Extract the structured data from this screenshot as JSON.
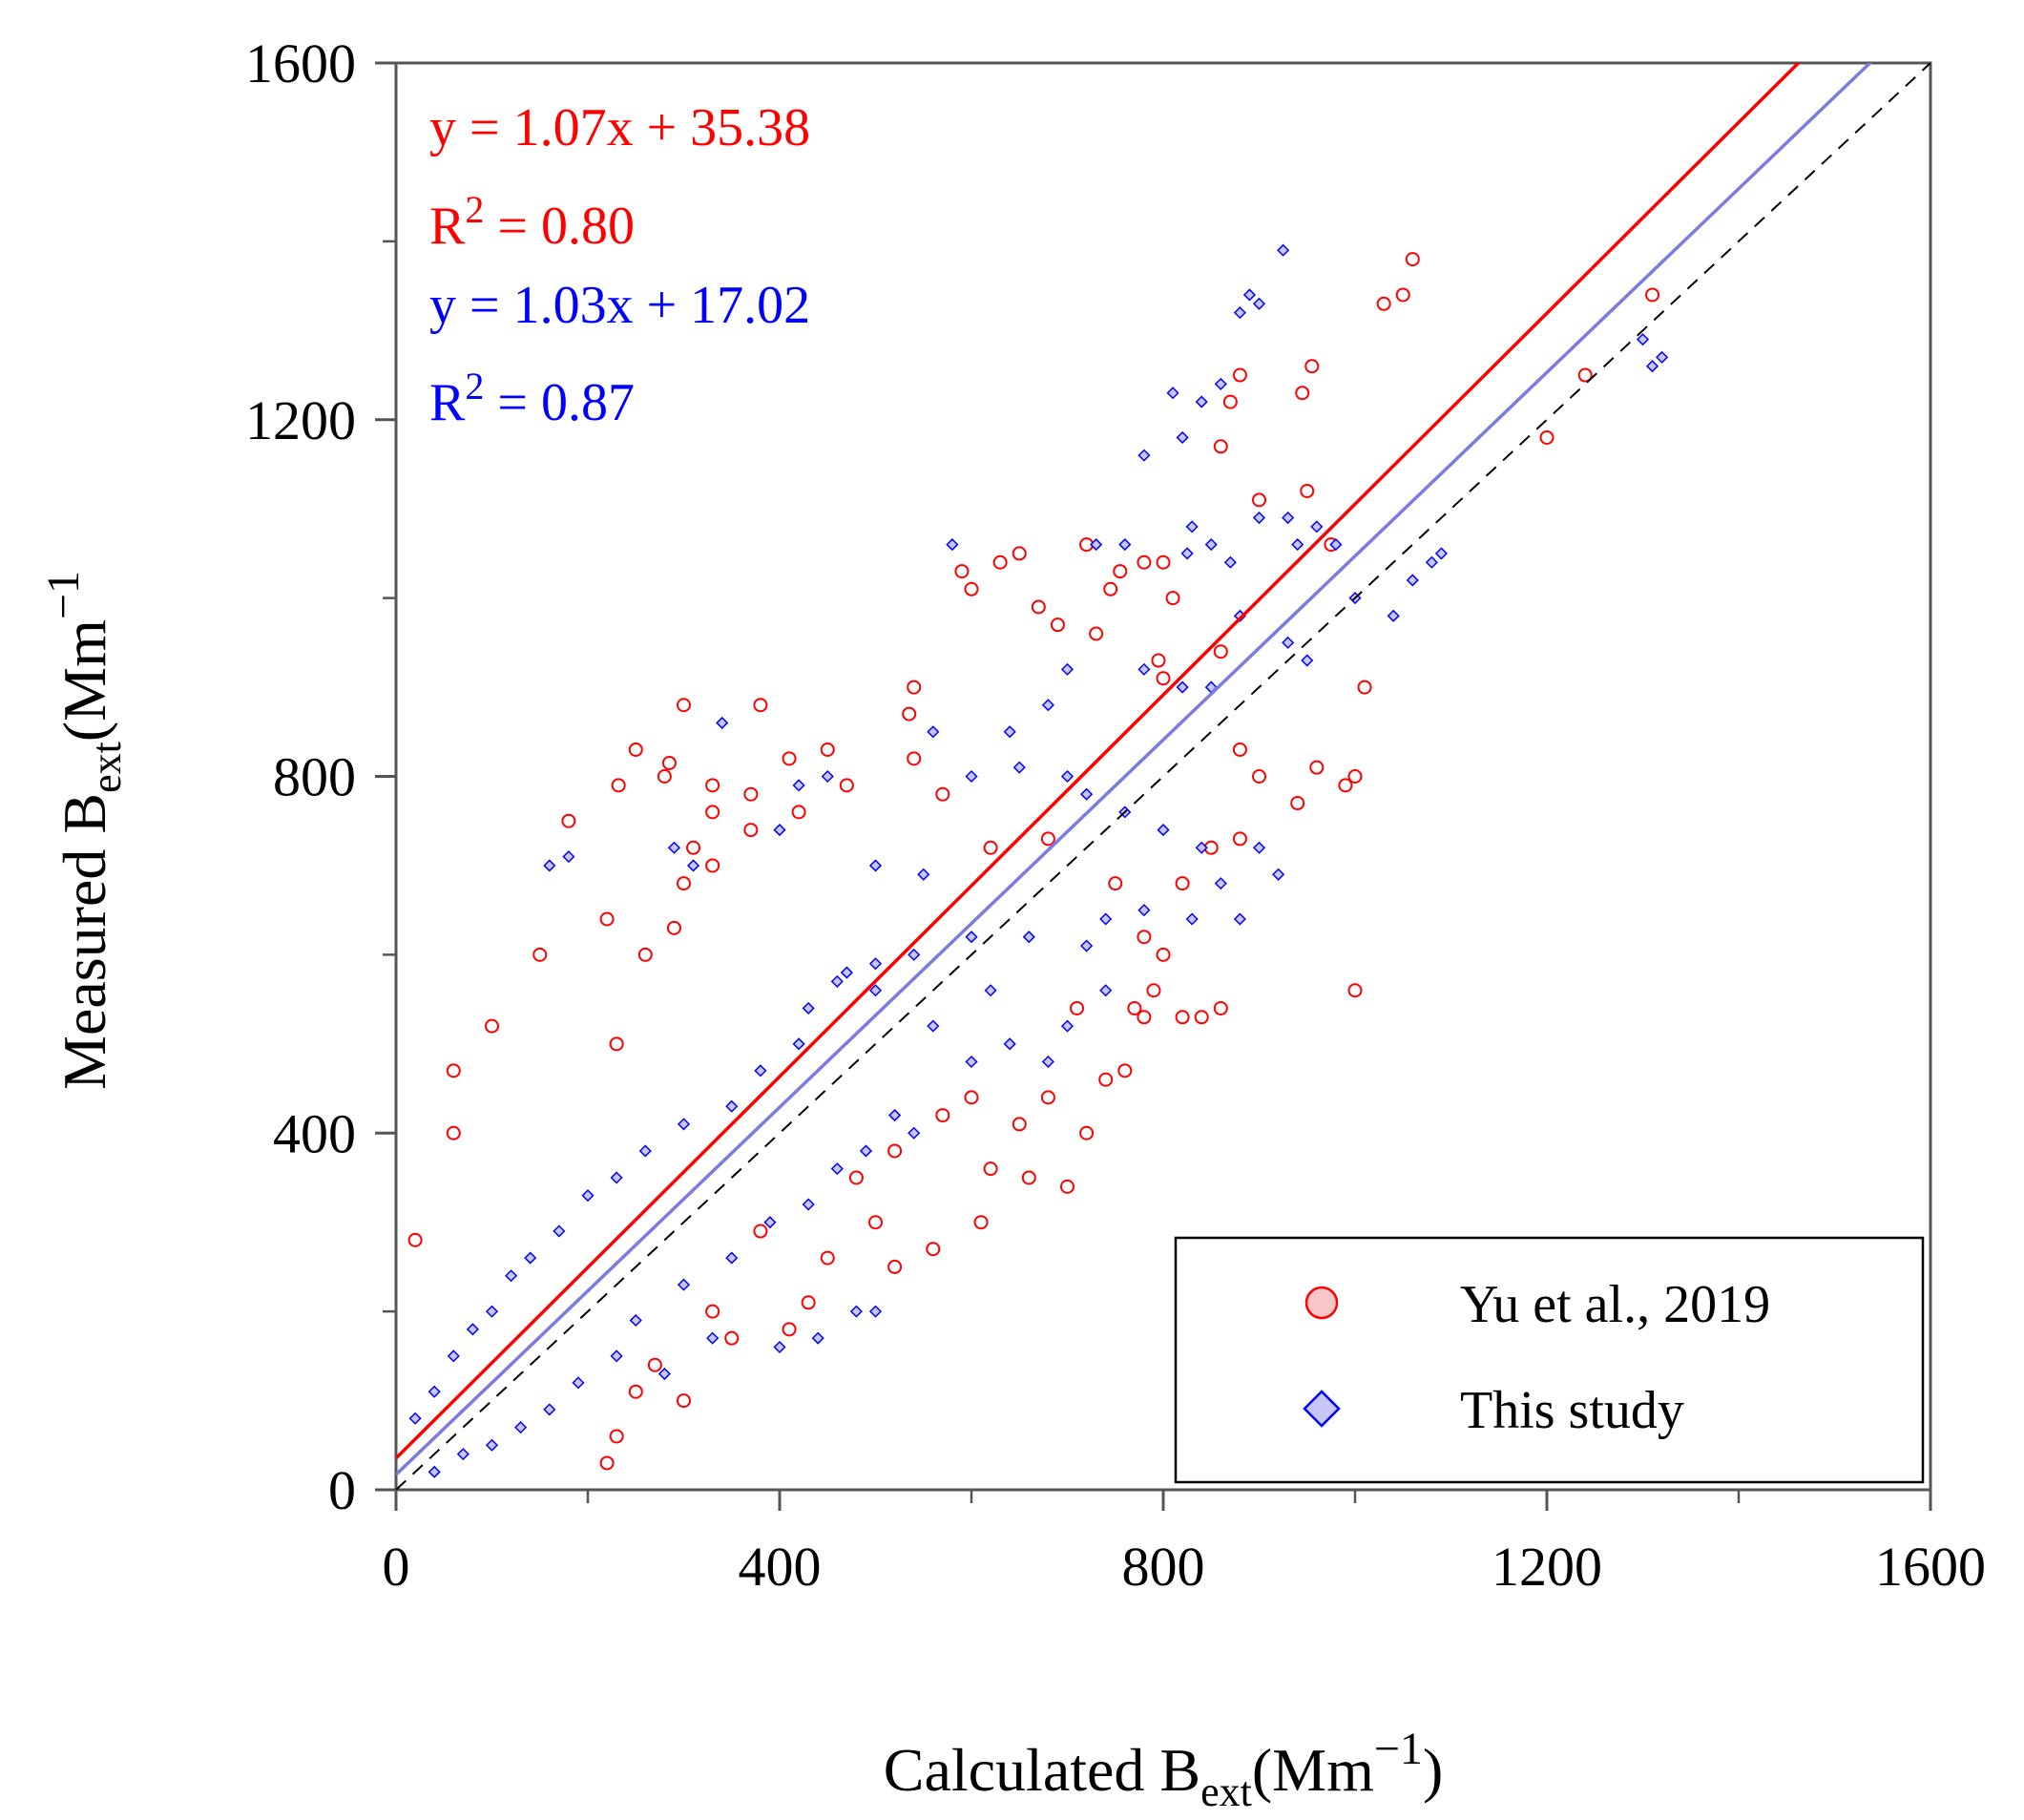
{
  "chart_data": {
    "type": "scatter",
    "xlabel": {
      "main": "Calculated B",
      "sub": "ext",
      "unit": "(Mm",
      "sup": "−1",
      "close": ")"
    },
    "ylabel": {
      "main": "Measured B",
      "sub": "ext",
      "unit": "(Mm",
      "sup": "−1"
    },
    "xlim": [
      0,
      1600
    ],
    "ylim": [
      0,
      1600
    ],
    "x_ticks": [
      0,
      400,
      800,
      1200,
      1600
    ],
    "y_ticks": [
      0,
      400,
      800,
      1200,
      1600
    ],
    "x_minor_ticks": [
      200,
      600,
      1000,
      1400
    ],
    "y_minor_ticks": [
      200,
      600,
      1000,
      1400
    ],
    "x_tick_labels": [
      "0",
      "400",
      "800",
      "1200",
      "1600"
    ],
    "y_tick_labels": [
      "0",
      "400",
      "800",
      "1200",
      "1600"
    ],
    "annotations": [
      {
        "id": "eq-red",
        "text": "y = 1.07x + 35.38",
        "color": "#ff0000"
      },
      {
        "id": "r2-red",
        "prefix": "R",
        "sup": "2",
        "text": " = 0.80",
        "color": "#ff0000"
      },
      {
        "id": "eq-blue",
        "text": "y = 1.03x + 17.02",
        "color": "#0000ff"
      },
      {
        "id": "r2-blue",
        "prefix": "R",
        "sup": "2",
        "text": " = 0.87",
        "color": "#0000ff"
      }
    ],
    "legend_position": "bottom-right",
    "series": [
      {
        "name": "Yu et al., 2019",
        "marker": "circle",
        "color": "#ff0000",
        "fill": "#f7c6c6",
        "fit": {
          "slope": 1.07,
          "intercept": 35.38,
          "r2": 0.8,
          "x_range": [
            0,
            1600
          ],
          "color": "#ff0000"
        },
        "points": [
          [
            232,
            790
          ],
          [
            280,
            800
          ],
          [
            285,
            815
          ],
          [
            250,
            830
          ],
          [
            330,
            790
          ],
          [
            300,
            880
          ],
          [
            380,
            880
          ],
          [
            450,
            830
          ],
          [
            410,
            820
          ],
          [
            540,
            900
          ],
          [
            535,
            870
          ],
          [
            590,
            1030
          ],
          [
            630,
            1040
          ],
          [
            650,
            1050
          ],
          [
            600,
            1010
          ],
          [
            670,
            990
          ],
          [
            690,
            970
          ],
          [
            730,
            960
          ],
          [
            745,
            1010
          ],
          [
            755,
            1030
          ],
          [
            720,
            1060
          ],
          [
            780,
            1040
          ],
          [
            800,
            1040
          ],
          [
            810,
            1000
          ],
          [
            795,
            930
          ],
          [
            800,
            910
          ],
          [
            860,
            940
          ],
          [
            900,
            1110
          ],
          [
            860,
            1170
          ],
          [
            880,
            1250
          ],
          [
            870,
            1220
          ],
          [
            955,
            1260
          ],
          [
            945,
            1230
          ],
          [
            950,
            1120
          ],
          [
            975,
            1060
          ],
          [
            1030,
            1330
          ],
          [
            1050,
            1340
          ],
          [
            1060,
            1380
          ],
          [
            1200,
            1180
          ],
          [
            1240,
            1250
          ],
          [
            1310,
            1340
          ],
          [
            1000,
            800
          ],
          [
            990,
            790
          ],
          [
            1010,
            900
          ],
          [
            960,
            810
          ],
          [
            940,
            770
          ],
          [
            1000,
            560
          ],
          [
            880,
            830
          ],
          [
            900,
            800
          ],
          [
            790,
            560
          ],
          [
            860,
            540
          ],
          [
            780,
            530
          ],
          [
            770,
            540
          ],
          [
            840,
            530
          ],
          [
            800,
            600
          ],
          [
            60,
            400
          ],
          [
            20,
            280
          ],
          [
            180,
            750
          ],
          [
            150,
            600
          ],
          [
            60,
            470
          ],
          [
            230,
            500
          ],
          [
            100,
            520
          ],
          [
            220,
            640
          ],
          [
            220,
            30
          ],
          [
            230,
            60
          ],
          [
            250,
            110
          ],
          [
            270,
            140
          ],
          [
            300,
            100
          ],
          [
            330,
            200
          ],
          [
            380,
            290
          ],
          [
            480,
            350
          ],
          [
            520,
            380
          ],
          [
            570,
            420
          ],
          [
            600,
            440
          ],
          [
            650,
            410
          ],
          [
            680,
            440
          ],
          [
            720,
            400
          ],
          [
            700,
            340
          ],
          [
            610,
            300
          ],
          [
            560,
            270
          ],
          [
            520,
            250
          ],
          [
            430,
            210
          ],
          [
            410,
            180
          ],
          [
            350,
            170
          ],
          [
            450,
            260
          ],
          [
            500,
            300
          ],
          [
            620,
            360
          ],
          [
            660,
            350
          ],
          [
            740,
            460
          ],
          [
            760,
            470
          ],
          [
            710,
            540
          ],
          [
            820,
            530
          ],
          [
            780,
            620
          ],
          [
            850,
            720
          ],
          [
            880,
            730
          ],
          [
            820,
            680
          ],
          [
            750,
            680
          ],
          [
            680,
            730
          ],
          [
            620,
            720
          ],
          [
            570,
            780
          ],
          [
            540,
            820
          ],
          [
            470,
            790
          ],
          [
            420,
            760
          ],
          [
            370,
            740
          ],
          [
            330,
            700
          ],
          [
            300,
            680
          ],
          [
            290,
            630
          ],
          [
            260,
            600
          ],
          [
            330,
            760
          ],
          [
            370,
            780
          ],
          [
            310,
            720
          ]
        ]
      },
      {
        "name": "This study",
        "marker": "diamond",
        "color": "#0000ff",
        "fill": "#c6c6f7",
        "fit": {
          "slope": 1.03,
          "intercept": 17.02,
          "r2": 0.87,
          "x_range": [
            0,
            1600
          ],
          "color": "#7b7be0"
        },
        "points": [
          [
            925,
            1390
          ],
          [
            900,
            1330
          ],
          [
            890,
            1340
          ],
          [
            880,
            1320
          ],
          [
            860,
            1240
          ],
          [
            840,
            1220
          ],
          [
            820,
            1180
          ],
          [
            810,
            1230
          ],
          [
            780,
            1160
          ],
          [
            760,
            1060
          ],
          [
            830,
            1080
          ],
          [
            825,
            1050
          ],
          [
            730,
            1060
          ],
          [
            580,
            1060
          ],
          [
            850,
            1060
          ],
          [
            870,
            1040
          ],
          [
            900,
            1090
          ],
          [
            930,
            1090
          ],
          [
            940,
            1060
          ],
          [
            960,
            1080
          ],
          [
            980,
            1060
          ],
          [
            1000,
            1000
          ],
          [
            1040,
            980
          ],
          [
            1060,
            1020
          ],
          [
            1080,
            1040
          ],
          [
            1090,
            1050
          ],
          [
            1310,
            1260
          ],
          [
            1320,
            1270
          ],
          [
            1300,
            1290
          ],
          [
            820,
            900
          ],
          [
            850,
            900
          ],
          [
            880,
            980
          ],
          [
            950,
            930
          ],
          [
            930,
            950
          ],
          [
            780,
            920
          ],
          [
            700,
            920
          ],
          [
            680,
            880
          ],
          [
            640,
            850
          ],
          [
            340,
            860
          ],
          [
            560,
            850
          ],
          [
            450,
            800
          ],
          [
            420,
            790
          ],
          [
            600,
            800
          ],
          [
            650,
            810
          ],
          [
            700,
            800
          ],
          [
            720,
            780
          ],
          [
            760,
            760
          ],
          [
            800,
            740
          ],
          [
            840,
            720
          ],
          [
            860,
            680
          ],
          [
            900,
            720
          ],
          [
            920,
            690
          ],
          [
            880,
            640
          ],
          [
            830,
            640
          ],
          [
            780,
            650
          ],
          [
            740,
            640
          ],
          [
            720,
            610
          ],
          [
            660,
            620
          ],
          [
            600,
            620
          ],
          [
            540,
            600
          ],
          [
            500,
            590
          ],
          [
            460,
            570
          ],
          [
            430,
            540
          ],
          [
            470,
            580
          ],
          [
            500,
            560
          ],
          [
            420,
            500
          ],
          [
            380,
            470
          ],
          [
            350,
            430
          ],
          [
            300,
            410
          ],
          [
            260,
            380
          ],
          [
            230,
            350
          ],
          [
            200,
            330
          ],
          [
            170,
            290
          ],
          [
            140,
            260
          ],
          [
            120,
            240
          ],
          [
            100,
            200
          ],
          [
            80,
            180
          ],
          [
            60,
            150
          ],
          [
            40,
            110
          ],
          [
            20,
            80
          ],
          [
            180,
            710
          ],
          [
            160,
            700
          ],
          [
            290,
            720
          ],
          [
            400,
            740
          ],
          [
            310,
            700
          ],
          [
            500,
            700
          ],
          [
            550,
            690
          ],
          [
            620,
            560
          ],
          [
            560,
            520
          ],
          [
            600,
            480
          ],
          [
            640,
            500
          ],
          [
            700,
            520
          ],
          [
            740,
            560
          ],
          [
            680,
            480
          ],
          [
            520,
            420
          ],
          [
            460,
            360
          ],
          [
            540,
            400
          ],
          [
            490,
            380
          ],
          [
            430,
            320
          ],
          [
            390,
            300
          ],
          [
            350,
            260
          ],
          [
            300,
            230
          ],
          [
            250,
            190
          ],
          [
            230,
            150
          ],
          [
            190,
            120
          ],
          [
            160,
            90
          ],
          [
            130,
            70
          ],
          [
            100,
            50
          ],
          [
            70,
            40
          ],
          [
            40,
            20
          ],
          [
            480,
            200
          ],
          [
            500,
            200
          ],
          [
            440,
            170
          ],
          [
            400,
            160
          ],
          [
            330,
            170
          ],
          [
            280,
            130
          ]
        ]
      }
    ]
  }
}
